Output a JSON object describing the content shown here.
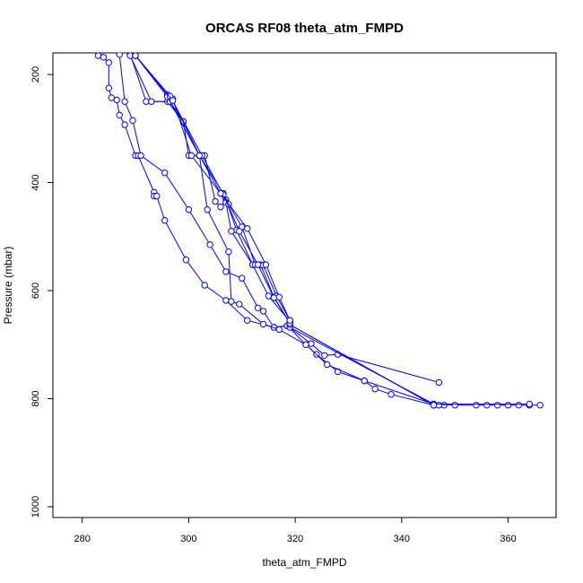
{
  "chart_data": {
    "type": "line",
    "title": "ORCAS RF08 theta_atm_FMPD",
    "xlabel": "theta_atm_FMPD",
    "ylabel": "Pressure (mbar)",
    "xlim": [
      274.5,
      369.0
    ],
    "ylim": [
      1020,
      160
    ],
    "y_reversed": true,
    "xticks": [
      280,
      300,
      320,
      340,
      360
    ],
    "yticks": [
      200,
      400,
      600,
      800,
      1000
    ],
    "grid": false,
    "marker": "open-circle",
    "line_color": "#0000ff",
    "series": [
      {
        "points": [
          [
            283,
            165
          ],
          [
            284,
            168
          ],
          [
            285,
            178
          ],
          [
            285,
            225
          ],
          [
            285.5,
            243
          ],
          [
            286.5,
            247
          ],
          [
            287,
            275
          ],
          [
            288,
            293
          ],
          [
            290,
            350
          ],
          [
            290.5,
            350
          ],
          [
            293.5,
            418
          ],
          [
            293.5,
            425
          ],
          [
            294,
            425
          ],
          [
            295.5,
            470
          ],
          [
            299.5,
            543
          ],
          [
            303,
            590
          ],
          [
            307,
            618
          ],
          [
            311,
            655
          ],
          [
            316,
            668
          ],
          [
            318.5,
            665
          ],
          [
            322,
            700
          ],
          [
            324,
            718
          ],
          [
            328,
            750
          ],
          [
            333,
            767
          ],
          [
            335,
            782
          ],
          [
            338,
            792
          ],
          [
            346,
            812
          ],
          [
            348,
            812
          ]
        ]
      },
      {
        "points": [
          [
            287,
            163
          ],
          [
            288,
            250
          ],
          [
            289.5,
            285
          ],
          [
            291,
            350
          ],
          [
            295.5,
            382
          ],
          [
            300,
            450
          ],
          [
            304,
            515
          ],
          [
            307,
            565
          ],
          [
            310,
            577
          ],
          [
            313,
            632
          ],
          [
            314,
            638
          ],
          [
            316,
            668
          ],
          [
            318.5,
            665
          ],
          [
            323,
            698
          ],
          [
            325.5,
            720
          ],
          [
            328,
            718
          ],
          [
            347,
            770
          ]
        ]
      },
      {
        "points": [
          [
            289,
            162
          ],
          [
            292,
            250
          ],
          [
            296,
            250
          ],
          [
            299,
            287
          ],
          [
            300,
            350
          ],
          [
            302,
            350
          ],
          [
            303.5,
            450
          ],
          [
            307.5,
            528
          ],
          [
            308,
            620
          ],
          [
            309.5,
            625
          ],
          [
            314,
            662
          ],
          [
            317,
            672
          ],
          [
            322,
            700
          ],
          [
            326,
            737
          ],
          [
            333,
            767
          ],
          [
            346,
            810
          ],
          [
            350,
            812
          ],
          [
            354,
            812
          ],
          [
            356,
            812
          ],
          [
            358,
            812
          ],
          [
            360,
            812
          ],
          [
            362,
            812
          ],
          [
            364,
            812
          ],
          [
            366,
            812
          ]
        ]
      },
      {
        "points": [
          [
            289,
            165
          ],
          [
            293,
            250
          ],
          [
            296.5,
            250
          ],
          [
            299,
            287
          ],
          [
            302,
            350
          ],
          [
            303,
            350
          ],
          [
            305,
            435
          ],
          [
            306,
            445
          ],
          [
            307,
            432
          ],
          [
            309,
            488
          ],
          [
            312,
            552
          ],
          [
            315,
            610
          ],
          [
            319,
            657
          ],
          [
            319,
            663
          ],
          [
            346,
            812
          ],
          [
            347,
            812
          ]
        ]
      },
      {
        "points": [
          [
            290,
            165
          ],
          [
            296,
            237
          ],
          [
            297,
            245
          ],
          [
            300.5,
            350
          ],
          [
            306,
            420
          ],
          [
            307,
            437
          ],
          [
            308,
            490
          ],
          [
            312,
            552
          ],
          [
            313.5,
            552
          ],
          [
            316,
            612
          ],
          [
            319,
            660
          ],
          [
            319,
            668
          ],
          [
            346,
            810
          ],
          [
            364,
            810
          ]
        ]
      },
      {
        "points": [
          [
            290,
            165
          ],
          [
            296,
            241
          ],
          [
            302,
            350
          ],
          [
            306.5,
            420
          ],
          [
            307.5,
            440
          ],
          [
            310,
            482
          ],
          [
            312.5,
            552
          ],
          [
            314,
            553
          ],
          [
            316.5,
            610
          ],
          [
            319,
            655
          ],
          [
            319,
            663
          ],
          [
            346,
            812
          ]
        ]
      },
      {
        "points": [
          [
            290,
            165
          ],
          [
            296.5,
            240
          ],
          [
            302.5,
            350
          ],
          [
            306.5,
            422
          ],
          [
            309.5,
            490
          ],
          [
            313,
            552
          ],
          [
            316,
            613
          ],
          [
            319,
            660
          ]
        ]
      },
      {
        "points": [
          [
            290,
            165
          ],
          [
            297,
            248
          ],
          [
            302,
            350
          ],
          [
            306,
            420
          ],
          [
            311,
            485
          ],
          [
            314.5,
            552
          ],
          [
            317,
            612
          ],
          [
            319,
            655
          ]
        ]
      }
    ]
  }
}
